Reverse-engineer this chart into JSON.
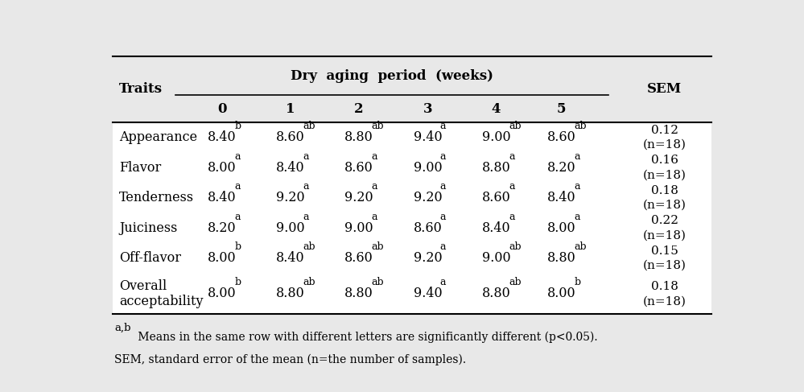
{
  "title_group": "Dry  aging  period  (weeks)",
  "col_header_traits": "Traits",
  "col_header_sem": "SEM",
  "col_headers": [
    "0",
    "1",
    "2",
    "3",
    "4",
    "5"
  ],
  "rows": [
    {
      "trait": "Appearance",
      "values": [
        "8.40",
        "8.60",
        "8.80",
        "9.40",
        "9.00",
        "8.60"
      ],
      "superscripts": [
        "b",
        "ab",
        "ab",
        "a",
        "ab",
        "ab"
      ],
      "sem": "0.12\n(n=18)"
    },
    {
      "trait": "Flavor",
      "values": [
        "8.00",
        "8.40",
        "8.60",
        "9.00",
        "8.80",
        "8.20"
      ],
      "superscripts": [
        "a",
        "a",
        "a",
        "a",
        "a",
        "a"
      ],
      "sem": "0.16\n(n=18)"
    },
    {
      "trait": "Tenderness",
      "values": [
        "8.40",
        "9.20",
        "9.20",
        "9.20",
        "8.60",
        "8.40"
      ],
      "superscripts": [
        "a",
        "a",
        "a",
        "a",
        "a",
        "a"
      ],
      "sem": "0.18\n(n=18)"
    },
    {
      "trait": "Juiciness",
      "values": [
        "8.20",
        "9.00",
        "9.00",
        "8.60",
        "8.40",
        "8.00"
      ],
      "superscripts": [
        "a",
        "a",
        "a",
        "a",
        "a",
        "a"
      ],
      "sem": "0.22\n(n=18)"
    },
    {
      "trait": "Off-flavor",
      "values": [
        "8.00",
        "8.40",
        "8.60",
        "9.20",
        "9.00",
        "8.80"
      ],
      "superscripts": [
        "b",
        "ab",
        "ab",
        "a",
        "ab",
        "ab"
      ],
      "sem": "0.15\n(n=18)"
    },
    {
      "trait": "Overall\nacceptability",
      "values": [
        "8.00",
        "8.80",
        "8.80",
        "9.40",
        "8.80",
        "8.00"
      ],
      "superscripts": [
        "b",
        "ab",
        "ab",
        "a",
        "ab",
        "b"
      ],
      "sem": "0.18\n(n=18)"
    }
  ],
  "footnote1_super": "a,b",
  "footnote1_text": " Means in the same row with different letters are significantly different (p<0.05).",
  "footnote2": "SEM, standard error of the mean (n=the number of samples).",
  "bg_color": "#e8e8e8",
  "body_bg": "#ffffff",
  "header_fontsize": 12,
  "body_fontsize": 11.5,
  "footnote_fontsize": 10
}
